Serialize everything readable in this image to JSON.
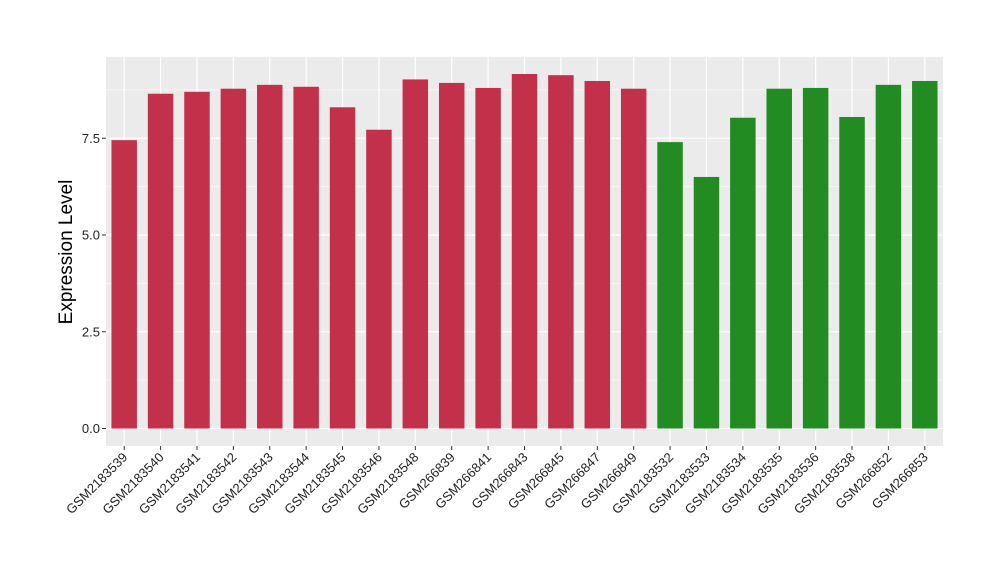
{
  "chart_data": {
    "type": "bar",
    "ylabel": "Expression Level",
    "xlabel": "",
    "ylim": [
      0,
      9.5
    ],
    "yticks": [
      "0.0",
      "2.5",
      "5.0",
      "7.5"
    ],
    "ytick_values": [
      0,
      2.5,
      5.0,
      7.5
    ],
    "grid": true,
    "categories": [
      "GSM2183539",
      "GSM2183540",
      "GSM2183541",
      "GSM2183542",
      "GSM2183543",
      "GSM2183544",
      "GSM2183545",
      "GSM2183546",
      "GSM2183548",
      "GSM266839",
      "GSM266841",
      "GSM266843",
      "GSM266845",
      "GSM266847",
      "GSM266849",
      "GSM2183532",
      "GSM2183533",
      "GSM2183534",
      "GSM2183535",
      "GSM2183536",
      "GSM2183538",
      "GSM266852",
      "GSM266853"
    ],
    "values": [
      7.45,
      8.65,
      8.7,
      8.78,
      8.88,
      8.83,
      8.3,
      7.72,
      9.02,
      8.93,
      8.8,
      9.16,
      9.13,
      8.98,
      8.78,
      7.4,
      6.5,
      8.03,
      8.78,
      8.8,
      8.05,
      8.88,
      8.98
    ],
    "group_colors": [
      "#c3304a",
      "#c3304a",
      "#c3304a",
      "#c3304a",
      "#c3304a",
      "#c3304a",
      "#c3304a",
      "#c3304a",
      "#c3304a",
      "#c3304a",
      "#c3304a",
      "#c3304a",
      "#c3304a",
      "#c3304a",
      "#c3304a",
      "#228b22",
      "#228b22",
      "#228b22",
      "#228b22",
      "#228b22",
      "#228b22",
      "#228b22",
      "#228b22"
    ],
    "panel_background": "#ebebeb",
    "grid_color": "#ffffff"
  }
}
